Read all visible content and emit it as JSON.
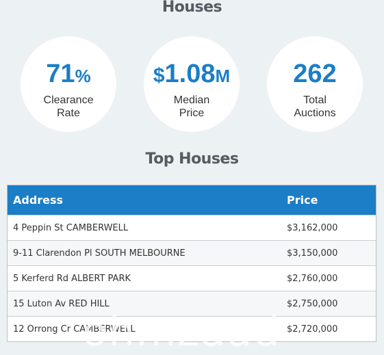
{
  "houses_title": "Houses",
  "stats": [
    {
      "value": "71",
      "unit": "%",
      "label_line1": "Clearance",
      "label_line2": "Rate"
    },
    {
      "currency": "$",
      "value": "1.08",
      "unit": "M",
      "label_line1": "Median",
      "label_line2": "Price"
    },
    {
      "value": "262",
      "label_line1": "Total",
      "label_line2": "Auctions"
    }
  ],
  "top_houses_title": "Top Houses",
  "table": {
    "headers": {
      "address": "Address",
      "price": "Price"
    },
    "rows": [
      {
        "address": "4 Peppin St CAMBERWELL",
        "price": "$3,162,000"
      },
      {
        "address": "9-11 Clarendon Pl SOUTH MELBOURNE",
        "price": "$3,150,000"
      },
      {
        "address": "5 Kerferd Rd ALBERT PARK",
        "price": "$2,760,000"
      },
      {
        "address": "15 Luton Av RED HILL",
        "price": "$2,750,000"
      },
      {
        "address": "12 Orrong Cr CAMBERWELL",
        "price": "$2,720,000"
      }
    ]
  },
  "watermark": "ohmzaad",
  "colors": {
    "accent": "#1b7ec6",
    "background": "#ecf1f4",
    "text": "#333333"
  }
}
